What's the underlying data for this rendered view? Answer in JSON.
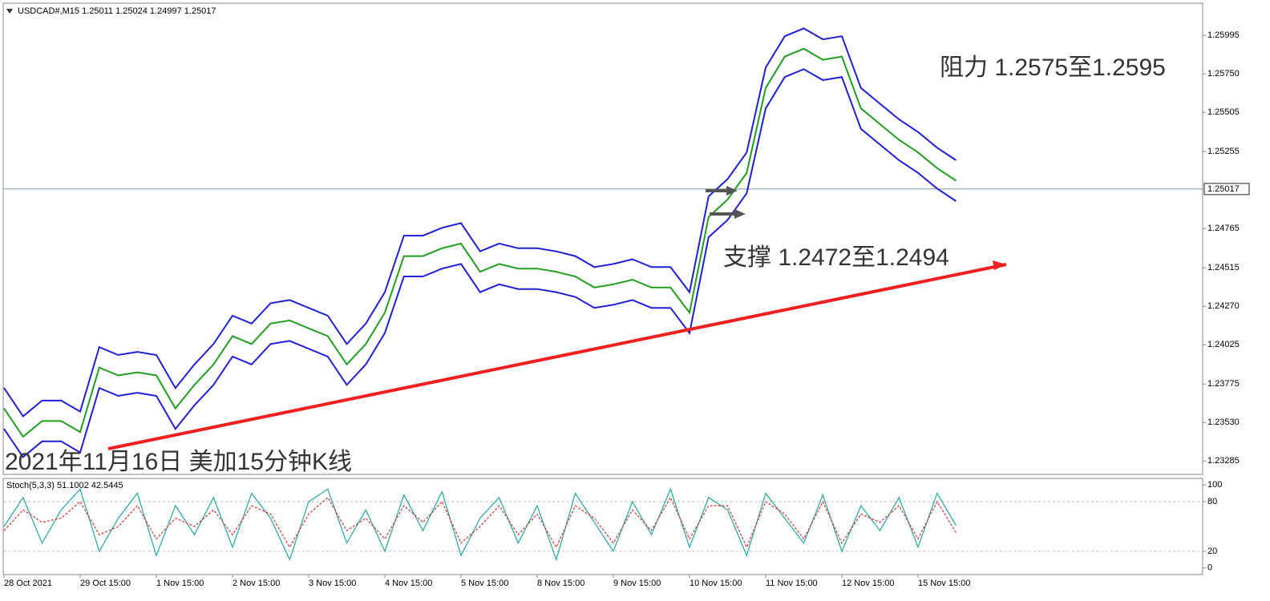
{
  "chart_data": [
    {
      "type": "line",
      "title": "USDCAD#,M15  1.25011 1.25024 1.24997 1.25017",
      "annotations": [
        "阻力 1.2575至1.2595",
        "支撑 1.2472至1.2494",
        "2021年11月16日 美加15分钟K线"
      ],
      "categories": [
        "28 Oct 2021",
        null,
        null,
        null,
        "29 Oct 15:00",
        null,
        null,
        null,
        "1 Nov 15:00",
        null,
        null,
        null,
        "2 Nov 15:00",
        null,
        null,
        null,
        "3 Nov 15:00",
        null,
        null,
        null,
        "4 Nov 15:00",
        null,
        null,
        null,
        "5 Nov 15:00",
        null,
        null,
        null,
        "8 Nov 15:00",
        null,
        null,
        null,
        "9 Nov 15:00",
        null,
        null,
        null,
        "10 Nov 15:00",
        null,
        null,
        null,
        "11 Nov 15:00",
        null,
        null,
        null,
        "12 Nov 15:00",
        null,
        null,
        null,
        "15 Nov 15:00",
        null,
        null
      ],
      "series": [
        {
          "color": "#1f1fd6",
          "values": [
            1.2375,
            1.2357,
            1.2367,
            1.2367,
            1.236,
            1.2401,
            1.2396,
            1.2398,
            1.2396,
            1.2375,
            1.239,
            1.2403,
            1.2421,
            1.2416,
            1.2429,
            1.2431,
            1.2426,
            1.2421,
            1.2403,
            1.2416,
            1.2436,
            1.2472,
            1.2472,
            1.2477,
            1.248,
            1.2462,
            1.2467,
            1.2464,
            1.2464,
            1.2462,
            1.2459,
            1.2452,
            1.2454,
            1.2457,
            1.2452,
            1.2452,
            1.2436,
            1.2497,
            1.2508,
            1.2525,
            1.2579,
            1.2599,
            1.2604,
            1.2597,
            1.2599,
            1.2566,
            1.2556,
            1.2546,
            1.2538,
            1.2528,
            1.252
          ]
        },
        {
          "color": "#1f9e1f",
          "values": [
            1.2362,
            1.2344,
            1.2354,
            1.2354,
            1.2347,
            1.2388,
            1.2383,
            1.2385,
            1.2383,
            1.2362,
            1.2377,
            1.239,
            1.2408,
            1.2403,
            1.2416,
            1.2418,
            1.2413,
            1.2408,
            1.239,
            1.2403,
            1.2423,
            1.2459,
            1.2459,
            1.2464,
            1.2467,
            1.2449,
            1.2454,
            1.2451,
            1.2451,
            1.2449,
            1.2446,
            1.2439,
            1.2441,
            1.2444,
            1.2439,
            1.2439,
            1.2423,
            1.2484,
            1.2495,
            1.2512,
            1.2566,
            1.2586,
            1.2591,
            1.2584,
            1.2586,
            1.2553,
            1.2543,
            1.2533,
            1.2525,
            1.2515,
            1.2507
          ]
        },
        {
          "color": "#1f1fd6",
          "values": [
            1.2349,
            1.2331,
            1.2341,
            1.2341,
            1.2334,
            1.2375,
            1.237,
            1.2372,
            1.237,
            1.2349,
            1.2364,
            1.2377,
            1.2395,
            1.239,
            1.2403,
            1.2405,
            1.24,
            1.2395,
            1.2377,
            1.239,
            1.241,
            1.2446,
            1.2446,
            1.2451,
            1.2454,
            1.2436,
            1.2441,
            1.2438,
            1.2438,
            1.2436,
            1.2433,
            1.2426,
            1.2428,
            1.2431,
            1.2426,
            1.2426,
            1.241,
            1.2471,
            1.2482,
            1.2499,
            1.2553,
            1.2573,
            1.2578,
            1.2571,
            1.2573,
            1.254,
            1.253,
            1.252,
            1.2512,
            1.2502,
            1.2494
          ]
        }
      ],
      "last_price": 1.25017,
      "ylim": [
        1.232,
        1.262
      ],
      "yticks": [
        1.23285,
        {
          "value": 1.2353,
          "label": "1.23530"
        },
        1.23775,
        1.24025,
        {
          "value": 1.2427,
          "label": "1.24270"
        },
        1.24515,
        1.24765,
        1.25255,
        1.25505,
        {
          "value": 1.2575,
          "label": "1.25750"
        },
        1.25995
      ]
    },
    {
      "type": "line",
      "title": "Stoch(5,3,3) 51.1002 42.5445",
      "series": [
        {
          "color": "#20a8a0",
          "values": [
            50,
            85,
            30,
            70,
            95,
            20,
            60,
            90,
            15,
            75,
            40,
            85,
            25,
            90,
            60,
            10,
            80,
            95,
            30,
            70,
            20,
            88,
            45,
            92,
            15,
            60,
            85,
            30,
            75,
            10,
            90,
            55,
            20,
            80,
            40,
            95,
            25,
            85,
            70,
            15,
            90,
            60,
            30,
            88,
            20,
            75,
            45,
            85,
            25,
            90,
            51.1002
          ]
        },
        {
          "color": "#e03030",
          "dashed": true,
          "values": [
            45,
            70,
            55,
            60,
            80,
            40,
            50,
            75,
            35,
            60,
            50,
            70,
            40,
            75,
            65,
            25,
            65,
            85,
            45,
            60,
            35,
            75,
            55,
            80,
            30,
            50,
            75,
            40,
            65,
            25,
            75,
            60,
            30,
            70,
            45,
            85,
            35,
            75,
            75,
            25,
            80,
            65,
            35,
            80,
            30,
            65,
            55,
            75,
            35,
            80,
            42.5445
          ]
        }
      ],
      "ylim": [
        -8,
        108
      ],
      "yticks": [
        0,
        20,
        80,
        100
      ]
    }
  ]
}
